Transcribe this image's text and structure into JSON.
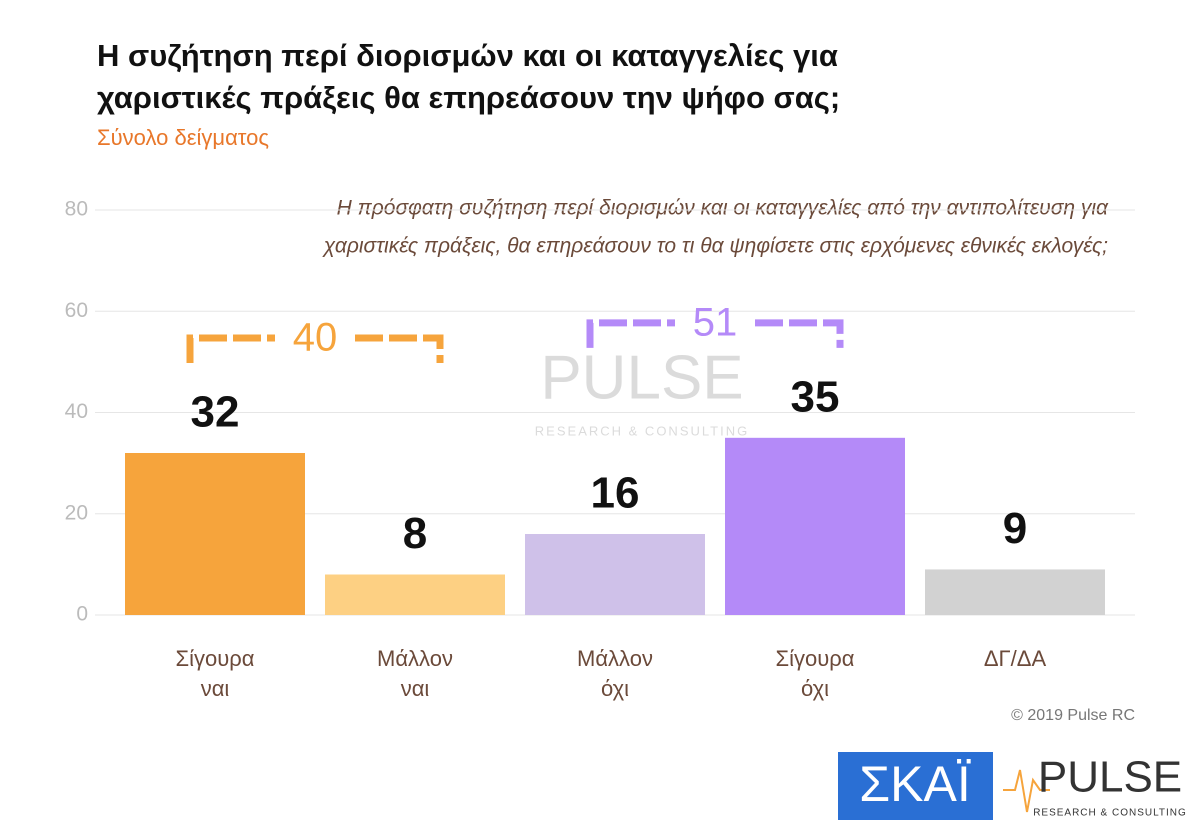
{
  "chart_data": {
    "type": "bar",
    "title": [
      "Η συζήτηση περί διορισμών και οι καταγγελίες για",
      "χαριστικές πράξεις θα επηρεάσουν την ψήφο σας;"
    ],
    "subtitle": "Σύνολο δείγματος",
    "question": [
      "Η πρόσφατη συζήτηση περί διορισμών και οι καταγγελίες από την αντιπολίτευση για",
      "χαριστικές πράξεις, θα επηρεάσουν το τι θα ψηφίσετε στις ερχόμενες εθνικές εκλογές;"
    ],
    "categories": [
      [
        "Σίγουρα",
        "ναι"
      ],
      [
        "Μάλλον",
        "ναι"
      ],
      [
        "Μάλλον",
        "όχι"
      ],
      [
        "Σίγουρα",
        "όχι"
      ],
      [
        "ΔΓ/ΔΑ"
      ]
    ],
    "values": [
      32,
      8,
      16,
      35,
      9
    ],
    "colors": [
      "#f6a43c",
      "#fdd083",
      "#cfc1e9",
      "#b48af8",
      "#d2d2d2"
    ],
    "ylim": [
      0,
      80
    ],
    "yticks": [
      0,
      20,
      40,
      60,
      80
    ],
    "grid": true,
    "brackets": [
      {
        "label": "40",
        "color": "#f6a43c"
      },
      {
        "label": "51",
        "color": "#b48af8"
      }
    ],
    "copyright": "© 2019 Pulse RC",
    "logos": {
      "skai": "ΣΚΑΪ",
      "pulse": "PULSE",
      "pulse_sub": "RESEARCH & CONSULTING"
    }
  }
}
